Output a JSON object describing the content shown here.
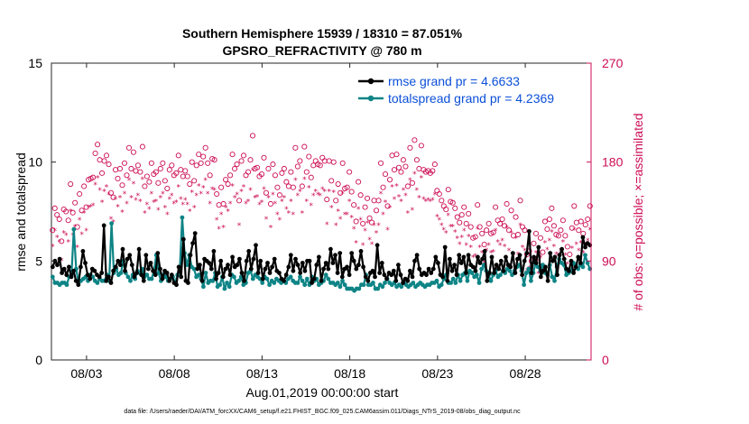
{
  "colors": {
    "rmse": "#000000",
    "spread": "#0e8486",
    "obs": "#cc0e55",
    "legend_text": "#0b4fd8",
    "axis": "#262626"
  },
  "chart_data": {
    "type": "line",
    "title_line1": "Southern Hemisphere 15939 / 18310 = 87.051%",
    "title_line2": "GPSRO_REFRACTIVITY @ 780 m",
    "ylabel_left": "rmse and totalspread",
    "ylabel_right": "# of obs: o=possible; ×=assimilated",
    "xlabel": "Aug.01,2019 00:00:00 start",
    "footnote": "data file: /Users/raeder/DAI/ATM_forcXX/CAM6_setup/f.e21.FHIST_BGC.f09_025.CAM6assim.011/Diags_NTrS_2019-08/obs_diag_output.nc",
    "x_range": [
      1,
      31.75
    ],
    "ylim_left": [
      0,
      15
    ],
    "ylim_right": [
      0,
      270
    ],
    "yticks_left": [
      "0",
      "5",
      "10",
      "15"
    ],
    "yticks_right": [
      "0",
      "90",
      "180",
      "270"
    ],
    "xticks": [
      {
        "day": 3,
        "label": "08/03"
      },
      {
        "day": 8,
        "label": "08/08"
      },
      {
        "day": 13,
        "label": "08/13"
      },
      {
        "day": 18,
        "label": "08/18"
      },
      {
        "day": 23,
        "label": "08/23"
      },
      {
        "day": 28,
        "label": "08/28"
      }
    ],
    "legend": [
      {
        "name": "rmse grand pr = 4.6633",
        "series": "rmse"
      },
      {
        "name": "totalspread grand pr = 4.2369",
        "series": "spread"
      }
    ],
    "series": [
      {
        "name": "rmse",
        "values": [
          4.7,
          5.0,
          4.8,
          5.1,
          4.4,
          4.6,
          4.3,
          4.7,
          4.2,
          4.5,
          4.0,
          3.8,
          4.7,
          5.5,
          4.9,
          4.3,
          4.1,
          4.6,
          4.5,
          4.3,
          4.2,
          4.4,
          6.8,
          4.0,
          4.2,
          3.9,
          4.5,
          4.7,
          5.0,
          4.8,
          5.6,
          4.5,
          5.1,
          5.3,
          4.8,
          4.2,
          4.4,
          5.6,
          4.3,
          4.0,
          5.3,
          4.6,
          4.9,
          4.5,
          4.3,
          5.4,
          4.6,
          4.1,
          4.5,
          4.4,
          4.0,
          4.3,
          3.9,
          3.8,
          4.7,
          4.2,
          6.1,
          4.0,
          3.9,
          5.3,
          5.9,
          6.4,
          4.6,
          4.8,
          4.0,
          5.1,
          5.0,
          4.9,
          4.6,
          5.5,
          4.1,
          4.4,
          5.0,
          4.2,
          4.6,
          4.8,
          4.3,
          5.2,
          4.7,
          4.8,
          5.1,
          4.4,
          4.0,
          5.0,
          5.5,
          4.6,
          5.1,
          5.8,
          4.4,
          5.0,
          4.1,
          4.6,
          4.9,
          4.4,
          4.7,
          5.1,
          4.5,
          4.4,
          4.1,
          4.0,
          4.3,
          4.7,
          5.3,
          4.5,
          5.1,
          4.8,
          4.4,
          4.9,
          4.5,
          5.0,
          5.0,
          3.9,
          4.1,
          4.8,
          5.2,
          4.0,
          4.6,
          4.9,
          4.6,
          5.6,
          4.9,
          5.3,
          4.4,
          5.4,
          4.2,
          4.6,
          4.7,
          4.3,
          5.4,
          5.0,
          4.6,
          4.8,
          5.5,
          4.7,
          4.2,
          4.0,
          4.4,
          4.5,
          4.2,
          5.8,
          4.4,
          4.9,
          4.3,
          4.1,
          4.4,
          4.3,
          4.5,
          4.0,
          4.8,
          4.3,
          3.9,
          4.1,
          4.0,
          4.5,
          4.2,
          5.0,
          5.3,
          4.6,
          4.3,
          4.4,
          4.3,
          4.6,
          4.4,
          4.6,
          5.2,
          4.9,
          4.3,
          4.2,
          5.7,
          4.0,
          5.1,
          4.5,
          4.8,
          4.3,
          5.3,
          4.9,
          5.2,
          4.4,
          5.3,
          4.8,
          4.7,
          4.5,
          5.2,
          4.9,
          5.1,
          5.5,
          4.0,
          4.4,
          5.2,
          4.4,
          4.8,
          4.6,
          5.0,
          4.5,
          5.2,
          4.8,
          4.7,
          5.4,
          4.4,
          5.1,
          5.3,
          4.3,
          5.0,
          5.4,
          6.5,
          4.4,
          5.2,
          4.9,
          5.7,
          4.2,
          4.5,
          4.7,
          4.0,
          5.4,
          5.0,
          5.2,
          4.3,
          5.3,
          5.6,
          5.1,
          4.6,
          4.5,
          5.0,
          4.4,
          4.7,
          5.2,
          4.9,
          6.2,
          5.7,
          5.9,
          5.8
        ]
      },
      {
        "name": "totalspread",
        "values": [
          4.2,
          3.9,
          3.9,
          3.8,
          3.9,
          3.9,
          3.8,
          4.2,
          4.3,
          6.6,
          4.6,
          3.9,
          4.0,
          4.1,
          4.2,
          4.0,
          4.3,
          4.2,
          4.0,
          3.9,
          4.1,
          4.0,
          4.0,
          4.3,
          4.0,
          6.9,
          4.4,
          4.6,
          4.3,
          4.4,
          5.0,
          4.4,
          4.2,
          4.0,
          4.3,
          4.1,
          4.5,
          4.4,
          4.6,
          4.2,
          4.3,
          4.1,
          4.1,
          4.5,
          5.3,
          4.4,
          4.0,
          4.3,
          4.2,
          4.0,
          4.1,
          4.2,
          3.9,
          4.3,
          4.6,
          7.2,
          5.4,
          4.8,
          5.3,
          4.7,
          4.6,
          4.2,
          4.3,
          4.1,
          3.7,
          4.4,
          3.9,
          4.0,
          4.0,
          4.4,
          3.7,
          3.8,
          4.2,
          3.6,
          3.9,
          3.7,
          4.3,
          4.2,
          3.9,
          4.0,
          4.2,
          3.8,
          3.9,
          4.4,
          4.5,
          4.1,
          4.3,
          4.2,
          4.1,
          3.9,
          4.2,
          4.1,
          3.8,
          4.0,
          3.9,
          4.1,
          4.0,
          3.9,
          4.0,
          3.9,
          4.1,
          4.2,
          4.0,
          3.9,
          3.9,
          4.2,
          4.0,
          3.8,
          4.1,
          3.8,
          4.2,
          4.0,
          4.1,
          3.8,
          3.9,
          4.0,
          4.3,
          4.1,
          3.9,
          3.9,
          3.8,
          3.9,
          3.7,
          4.0,
          3.8,
          3.6,
          3.6,
          3.6,
          3.5,
          3.6,
          3.6,
          3.8,
          3.8,
          4.3,
          3.8,
          3.8,
          3.9,
          3.6,
          3.6,
          3.8,
          3.7,
          3.9,
          4.1,
          3.9,
          3.8,
          3.9,
          3.7,
          3.8,
          3.7,
          3.9,
          3.8,
          3.7,
          3.8,
          3.9,
          3.7,
          3.8,
          3.9,
          3.8,
          3.7,
          3.8,
          3.8,
          3.9,
          3.9,
          4.0,
          3.7,
          3.8,
          4.1,
          4.3,
          3.9,
          3.9,
          4.1,
          3.9,
          4.3,
          4.0,
          4.3,
          4.4,
          4.0,
          4.5,
          4.4,
          4.2,
          4.3,
          3.9,
          4.6,
          4.8,
          4.5,
          4.3,
          4.0,
          4.3,
          4.5,
          4.2,
          4.3,
          4.5,
          4.4,
          4.6,
          4.5,
          4.3,
          4.5,
          4.7,
          4.8,
          4.5,
          3.8,
          4.4,
          4.6,
          4.0,
          4.4,
          4.9,
          4.7,
          4.5,
          4.8,
          4.4,
          4.3,
          4.8,
          4.2,
          4.0,
          4.7,
          5.1,
          4.9,
          4.8,
          4.3,
          4.4,
          4.5,
          4.9,
          4.8,
          4.6,
          4.8,
          4.7,
          5.3,
          4.9,
          4.6
        ]
      }
    ],
    "obs_possible": [
      118,
      138,
      132,
      128,
      108,
      137,
      135,
      127,
      160,
      134,
      143,
      121,
      151,
      136,
      158,
      139,
      164,
      165,
      166,
      188,
      196,
      182,
      170,
      181,
      186,
      178,
      152,
      148,
      173,
      165,
      174,
      159,
      179,
      168,
      193,
      174,
      189,
      172,
      177,
      171,
      194,
      158,
      167,
      162,
      179,
      169,
      171,
      161,
      174,
      179,
      163,
      156,
      173,
      177,
      168,
      170,
      186,
      173,
      167,
      172,
      167,
      160,
      180,
      163,
      177,
      187,
      179,
      185,
      193,
      179,
      168,
      183,
      182,
      151,
      141,
      157,
      142,
      164,
      160,
      168,
      187,
      174,
      178,
      145,
      181,
      186,
      168,
      171,
      182,
      204,
      174,
      175,
      167,
      169,
      184,
      152,
      174,
      142,
      178,
      168,
      157,
      150,
      170,
      174,
      162,
      158,
      171,
      157,
      193,
      176,
      181,
      158,
      194,
      171,
      185,
      166,
      177,
      181,
      178,
      177,
      184,
      181,
      146,
      181,
      163,
      180,
      145,
      160,
      152,
      179,
      156,
      157,
      171,
      153,
      141,
      126,
      162,
      150,
      124,
      139,
      147,
      129,
      125,
      145,
      136,
      145,
      179,
      157,
      169,
      140,
      164,
      186,
      173,
      187,
      175,
      171,
      182,
      176,
      158,
      193,
      161,
      200,
      182,
      174,
      195,
      173,
      171,
      172,
      170,
      172,
      178,
      154,
      151,
      145,
      140,
      137,
      155,
      144,
      143,
      138,
      130,
      125,
      132,
      139,
      124,
      133,
      121,
      111,
      112,
      141,
      121,
      115,
      105,
      118,
      124,
      115,
      116,
      139,
      127,
      124,
      128,
      122,
      142,
      118,
      136,
      113,
      130,
      114,
      145,
      121,
      118,
      96,
      99,
      90,
      106,
      115,
      93,
      111,
      98,
      126,
      119,
      128,
      138,
      122,
      114,
      113,
      118,
      127,
      113,
      103,
      96,
      120,
      140,
      125,
      118,
      126,
      115,
      123,
      128,
      140
    ],
    "obs_assimilated": [
      104,
      118,
      112,
      108,
      91,
      116,
      114,
      108,
      136,
      114,
      122,
      103,
      128,
      115,
      134,
      118,
      139,
      140,
      141,
      160,
      166,
      155,
      144,
      154,
      158,
      151,
      129,
      126,
      147,
      140,
      148,
      135,
      152,
      143,
      164,
      148,
      161,
      146,
      150,
      145,
      165,
      134,
      142,
      138,
      152,
      144,
      145,
      137,
      148,
      152,
      139,
      133,
      147,
      150,
      143,
      144,
      158,
      147,
      142,
      146,
      142,
      136,
      153,
      139,
      150,
      159,
      152,
      157,
      164,
      152,
      143,
      156,
      155,
      128,
      120,
      133,
      121,
      139,
      136,
      143,
      159,
      148,
      151,
      123,
      154,
      158,
      143,
      145,
      155,
      173,
      148,
      149,
      142,
      144,
      156,
      129,
      148,
      121,
      151,
      143,
      133,
      128,
      145,
      148,
      138,
      134,
      145,
      133,
      164,
      150,
      154,
      134,
      165,
      145,
      157,
      141,
      150,
      154,
      151,
      150,
      156,
      154,
      124,
      154,
      139,
      153,
      123,
      136,
      129,
      152,
      133,
      133,
      145,
      130,
      120,
      107,
      138,
      128,
      105,
      118,
      125,
      110,
      106,
      123,
      116,
      123,
      152,
      133,
      144,
      119,
      139,
      158,
      147,
      159,
      149,
      145,
      155,
      150,
      134,
      164,
      137,
      170,
      155,
      148,
      166,
      147,
      145,
      146,
      145,
      146,
      151,
      131,
      128,
      123,
      119,
      116,
      132,
      122,
      122,
      117,
      111,
      106,
      112,
      118,
      105,
      113,
      103,
      94,
      95,
      120,
      103,
      98,
      89,
      100,
      105,
      98,
      99,
      118,
      108,
      105,
      109,
      104,
      121,
      100,
      116,
      96,
      111,
      97,
      123,
      103,
      100,
      82,
      84,
      77,
      90,
      98,
      79,
      94,
      83,
      107,
      101,
      109,
      117,
      104,
      97,
      96,
      100,
      108,
      96,
      88,
      82,
      102,
      119,
      106,
      100,
      107,
      98,
      105,
      109,
      119
    ]
  }
}
